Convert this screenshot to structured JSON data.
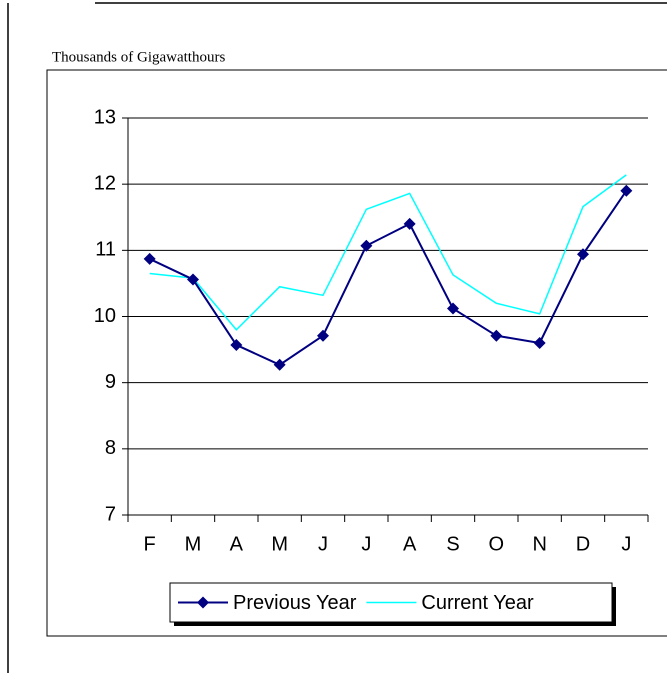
{
  "chart_data": {
    "type": "line",
    "y_label": "Thousands of Gigawatthours",
    "categories": [
      "F",
      "M",
      "A",
      "M",
      "J",
      "J",
      "A",
      "S",
      "O",
      "N",
      "D",
      "J"
    ],
    "series": [
      {
        "name": "Previous Year",
        "color": "#000080",
        "marker": "diamond",
        "values": [
          10.87,
          10.56,
          9.57,
          9.27,
          9.71,
          11.07,
          11.4,
          10.12,
          9.71,
          9.6,
          10.94,
          11.9
        ]
      },
      {
        "name": "Current Year",
        "color": "#00ffff",
        "values": [
          10.65,
          10.58,
          9.8,
          10.45,
          10.32,
          11.62,
          11.86,
          10.63,
          10.2,
          10.04,
          11.66,
          12.14
        ]
      }
    ],
    "ylim": [
      7,
      13
    ],
    "yticks": [
      7,
      8,
      9,
      10,
      11,
      12,
      13
    ],
    "grid": true,
    "legend": "bottom"
  }
}
